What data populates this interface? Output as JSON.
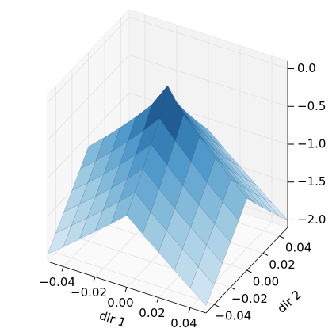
{
  "chart_data": {
    "type": "surface",
    "xlabel": "dir 1",
    "ylabel": "dir 2",
    "x": [
      -0.05,
      -0.04,
      -0.03,
      -0.02,
      -0.01,
      0,
      0.01,
      0.02,
      0.03,
      0.04,
      0.05
    ],
    "y": [
      -0.05,
      -0.04,
      -0.03,
      -0.02,
      -0.01,
      0,
      0.01,
      0.02,
      0.03,
      0.04,
      0.05
    ],
    "z": [
      [
        -2,
        -1.84,
        -1.67,
        -1.5,
        -1.33,
        -1.15,
        -1.33,
        -1.5,
        -1.67,
        -1.84,
        -2
      ],
      [
        -1.84,
        -1.67,
        -1.5,
        -1.33,
        -1.15,
        -0.96,
        -1.15,
        -1.33,
        -1.5,
        -1.67,
        -1.84
      ],
      [
        -1.67,
        -1.5,
        -1.33,
        -1.15,
        -0.96,
        -0.76,
        -0.96,
        -1.15,
        -1.33,
        -1.5,
        -1.67
      ],
      [
        -1.5,
        -1.33,
        -1.15,
        -0.96,
        -0.76,
        -0.55,
        -0.76,
        -0.96,
        -1.15,
        -1.33,
        -1.5
      ],
      [
        -1.33,
        -1.15,
        -0.96,
        -0.76,
        -0.55,
        -0.32,
        -0.55,
        -0.76,
        -0.96,
        -1.15,
        -1.33
      ],
      [
        -1.15,
        -0.96,
        -0.76,
        -0.55,
        -0.32,
        0,
        -0.32,
        -0.55,
        -0.76,
        -0.96,
        -1.15
      ],
      [
        -1.33,
        -1.15,
        -0.96,
        -0.76,
        -0.55,
        -0.32,
        -0.55,
        -0.76,
        -0.96,
        -1.15,
        -1.33
      ],
      [
        -1.5,
        -1.33,
        -1.15,
        -0.96,
        -0.76,
        -0.55,
        -0.76,
        -0.96,
        -1.15,
        -1.33,
        -1.5
      ],
      [
        -1.67,
        -1.5,
        -1.33,
        -1.15,
        -0.96,
        -0.76,
        -0.96,
        -1.15,
        -1.33,
        -1.5,
        -1.67
      ],
      [
        -1.84,
        -1.67,
        -1.5,
        -1.33,
        -1.15,
        -0.96,
        -1.15,
        -1.33,
        -1.5,
        -1.67,
        -1.84
      ],
      [
        -2,
        -1.84,
        -1.67,
        -1.5,
        -1.33,
        -1.15,
        -1.33,
        -1.5,
        -1.67,
        -1.84,
        -2
      ]
    ],
    "xlim": [
      -0.05,
      0.05
    ],
    "ylim": [
      -0.05,
      0.05
    ],
    "zlim": [
      -2.1,
      0.1
    ],
    "xticks": [
      {
        "value": -0.04,
        "label": "−0.04"
      },
      {
        "value": -0.02,
        "label": "−0.02"
      },
      {
        "value": 0,
        "label": "0.00"
      },
      {
        "value": 0.02,
        "label": "0.02"
      },
      {
        "value": 0.04,
        "label": "0.04"
      }
    ],
    "yticks": [
      {
        "value": -0.04,
        "label": "−0.04"
      },
      {
        "value": -0.02,
        "label": "−0.02"
      },
      {
        "value": 0,
        "label": "0.00"
      },
      {
        "value": 0.02,
        "label": "0.02"
      },
      {
        "value": 0.04,
        "label": "0.04"
      }
    ],
    "zticks": [
      {
        "value": -2,
        "label": "−2.0"
      },
      {
        "value": -1.5,
        "label": "−1.5"
      },
      {
        "value": -1,
        "label": "−1.0"
      },
      {
        "value": -0.5,
        "label": "−0.5"
      },
      {
        "value": 0,
        "label": "0.0"
      }
    ],
    "colormap": [
      "#deebf7",
      "#9ecae1",
      "#4292c6",
      "#08306b"
    ],
    "grid": true
  }
}
